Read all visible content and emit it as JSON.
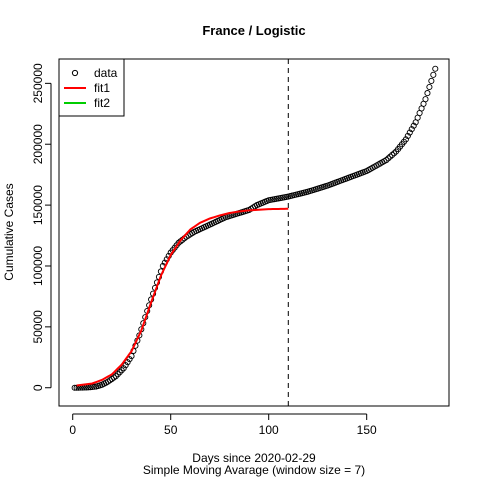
{
  "chart_data": {
    "type": "scatter",
    "title": "France / Logistic",
    "xlabel": "Days since 2020-02-29",
    "xlabel2": "Simple Moving Avarage (window size = 7)",
    "ylabel": "Cumulative Cases",
    "xlim": [
      -7,
      192
    ],
    "ylim": [
      -15000,
      270000
    ],
    "xticks": [
      0,
      50,
      100,
      150
    ],
    "yticks": [
      0,
      50000,
      100000,
      150000,
      200000,
      250000
    ],
    "vline_x": 110,
    "legend": {
      "position": "top-left",
      "entries": [
        {
          "label": "data",
          "symbol": "circle",
          "color": "#000000"
        },
        {
          "label": "fit1",
          "symbol": "line",
          "color": "#ff0000"
        },
        {
          "label": "fit2",
          "symbol": "line",
          "color": "#00cd00"
        }
      ]
    },
    "data_knots": [
      [
        2,
        0
      ],
      [
        8,
        300
      ],
      [
        12,
        1000
      ],
      [
        15,
        2500
      ],
      [
        18,
        5000
      ],
      [
        22,
        9500
      ],
      [
        26,
        16000
      ],
      [
        30,
        26000
      ],
      [
        34,
        43000
      ],
      [
        38,
        63000
      ],
      [
        42,
        82000
      ],
      [
        46,
        100000
      ],
      [
        50,
        111000
      ],
      [
        54,
        119000
      ],
      [
        58,
        124000
      ],
      [
        62,
        128000
      ],
      [
        66,
        131000
      ],
      [
        70,
        134000
      ],
      [
        74,
        137000
      ],
      [
        78,
        140000
      ],
      [
        82,
        142000
      ],
      [
        86,
        144000
      ],
      [
        90,
        146000
      ],
      [
        94,
        150000
      ],
      [
        100,
        154000
      ],
      [
        110,
        157000
      ],
      [
        120,
        161000
      ],
      [
        130,
        166000
      ],
      [
        140,
        172000
      ],
      [
        150,
        178000
      ],
      [
        160,
        187000
      ],
      [
        165,
        194000
      ],
      [
        170,
        204000
      ],
      [
        175,
        218000
      ],
      [
        180,
        237000
      ],
      [
        185,
        262000
      ]
    ],
    "fit1_knots": [
      [
        2,
        1800
      ],
      [
        10,
        3500
      ],
      [
        15,
        6500
      ],
      [
        20,
        11000
      ],
      [
        25,
        19000
      ],
      [
        30,
        30000
      ],
      [
        35,
        47000
      ],
      [
        40,
        70000
      ],
      [
        45,
        92000
      ],
      [
        50,
        109000
      ],
      [
        55,
        121000
      ],
      [
        60,
        130000
      ],
      [
        65,
        135500
      ],
      [
        70,
        139000
      ],
      [
        75,
        141500
      ],
      [
        80,
        143500
      ],
      [
        85,
        144800
      ],
      [
        90,
        145700
      ],
      [
        95,
        146200
      ],
      [
        100,
        146700
      ],
      [
        110,
        147000
      ]
    ],
    "data_x_range": [
      1,
      185
    ]
  }
}
